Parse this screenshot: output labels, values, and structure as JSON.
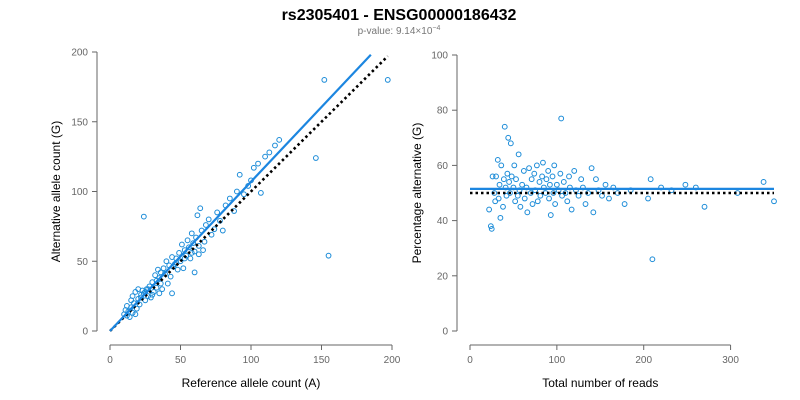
{
  "title": "rs2305401 - ENSG00000186432",
  "subtitle": {
    "prefix": "p-value: 9.14×10",
    "exponent": "−4"
  },
  "colors": {
    "points": "#1c8cd8",
    "fit_line": "#1c86e0",
    "reference_line": "#000000",
    "axis": "#666666"
  },
  "chart_data": [
    {
      "type": "scatter",
      "xlabel": "Reference allele count (A)",
      "ylabel": "Alternative allele count (G)",
      "xlim": [
        0,
        200
      ],
      "ylim": [
        0,
        200
      ],
      "xticks": [
        0,
        50,
        100,
        150,
        200
      ],
      "yticks": [
        0,
        50,
        100,
        150,
        200
      ],
      "grid": false,
      "points": [
        [
          10,
          12
        ],
        [
          11,
          15
        ],
        [
          12,
          11
        ],
        [
          12,
          18
        ],
        [
          13,
          14
        ],
        [
          14,
          10
        ],
        [
          15,
          22
        ],
        [
          15,
          17
        ],
        [
          16,
          25
        ],
        [
          16,
          13
        ],
        [
          17,
          20
        ],
        [
          18,
          12
        ],
        [
          18,
          28
        ],
        [
          19,
          16
        ],
        [
          20,
          23
        ],
        [
          20,
          30
        ],
        [
          21,
          19
        ],
        [
          22,
          24
        ],
        [
          22,
          26
        ],
        [
          23,
          29
        ],
        [
          24,
          27
        ],
        [
          24,
          82
        ],
        [
          25,
          22
        ],
        [
          26,
          30
        ],
        [
          27,
          25
        ],
        [
          28,
          32
        ],
        [
          29,
          24
        ],
        [
          30,
          35
        ],
        [
          31,
          28
        ],
        [
          32,
          40
        ],
        [
          33,
          36
        ],
        [
          34,
          44
        ],
        [
          35,
          38
        ],
        [
          36,
          42
        ],
        [
          37,
          30
        ],
        [
          38,
          45
        ],
        [
          39,
          41
        ],
        [
          40,
          50
        ],
        [
          41,
          34
        ],
        [
          42,
          47
        ],
        [
          43,
          39
        ],
        [
          44,
          53
        ],
        [
          45,
          46
        ],
        [
          46,
          48
        ],
        [
          47,
          52
        ],
        [
          48,
          44
        ],
        [
          49,
          56
        ],
        [
          50,
          50
        ],
        [
          51,
          62
        ],
        [
          52,
          45
        ],
        [
          53,
          58
        ],
        [
          54,
          54
        ],
        [
          55,
          65
        ],
        [
          56,
          60
        ],
        [
          57,
          52
        ],
        [
          58,
          70
        ],
        [
          59,
          63
        ],
        [
          60,
          57
        ],
        [
          61,
          67
        ],
        [
          62,
          83
        ],
        [
          63,
          61
        ],
        [
          64,
          88
        ],
        [
          65,
          72
        ],
        [
          66,
          58
        ],
        [
          68,
          76
        ],
        [
          70,
          80
        ],
        [
          72,
          69
        ],
        [
          74,
          73
        ],
        [
          76,
          85
        ],
        [
          78,
          79
        ],
        [
          80,
          72
        ],
        [
          82,
          90
        ],
        [
          85,
          95
        ],
        [
          88,
          86
        ],
        [
          90,
          100
        ],
        [
          92,
          112
        ],
        [
          95,
          98
        ],
        [
          98,
          104
        ],
        [
          100,
          108
        ],
        [
          102,
          117
        ],
        [
          105,
          120
        ],
        [
          107,
          99
        ],
        [
          110,
          125
        ],
        [
          113,
          128
        ],
        [
          117,
          133
        ],
        [
          120,
          137
        ],
        [
          146,
          124
        ],
        [
          152,
          180
        ],
        [
          155,
          54
        ],
        [
          197,
          180
        ],
        [
          25,
          28
        ],
        [
          27,
          30
        ],
        [
          30,
          26
        ],
        [
          33,
          31
        ],
        [
          36,
          34
        ],
        [
          47,
          49
        ],
        [
          53,
          52
        ],
        [
          58,
          56
        ],
        [
          67,
          64
        ],
        [
          35,
          27
        ],
        [
          44,
          27
        ],
        [
          63,
          55
        ],
        [
          60,
          42
        ]
      ],
      "fit_line": [
        [
          0,
          0
        ],
        [
          185,
          198
        ]
      ],
      "reference_line": [
        [
          0,
          0
        ],
        [
          197,
          197
        ]
      ]
    },
    {
      "type": "scatter",
      "xlabel": "Total number of reads",
      "ylabel": "Percentage alternative (G)",
      "xlim": [
        0,
        350
      ],
      "ylim": [
        0,
        100
      ],
      "xticks": [
        0,
        100,
        200,
        300
      ],
      "yticks": [
        0,
        20,
        40,
        60,
        80,
        100
      ],
      "grid": false,
      "points": [
        [
          22,
          44
        ],
        [
          24,
          38
        ],
        [
          25,
          37
        ],
        [
          26,
          56
        ],
        [
          28,
          50
        ],
        [
          29,
          47
        ],
        [
          30,
          56
        ],
        [
          32,
          62
        ],
        [
          33,
          48
        ],
        [
          34,
          53
        ],
        [
          35,
          41
        ],
        [
          36,
          60
        ],
        [
          38,
          45
        ],
        [
          39,
          55
        ],
        [
          40,
          74
        ],
        [
          41,
          52
        ],
        [
          42,
          49
        ],
        [
          43,
          57
        ],
        [
          44,
          70
        ],
        [
          45,
          54
        ],
        [
          46,
          50
        ],
        [
          47,
          68
        ],
        [
          48,
          56
        ],
        [
          50,
          52
        ],
        [
          51,
          60
        ],
        [
          52,
          47
        ],
        [
          53,
          55
        ],
        [
          55,
          49
        ],
        [
          56,
          64
        ],
        [
          57,
          51
        ],
        [
          58,
          45
        ],
        [
          60,
          53
        ],
        [
          62,
          58
        ],
        [
          63,
          48
        ],
        [
          65,
          52
        ],
        [
          66,
          43
        ],
        [
          68,
          59
        ],
        [
          70,
          50
        ],
        [
          71,
          55
        ],
        [
          72,
          46
        ],
        [
          74,
          57
        ],
        [
          75,
          51
        ],
        [
          77,
          60
        ],
        [
          78,
          47
        ],
        [
          80,
          54
        ],
        [
          81,
          49
        ],
        [
          83,
          56
        ],
        [
          84,
          61
        ],
        [
          85,
          52
        ],
        [
          87,
          50
        ],
        [
          88,
          55
        ],
        [
          90,
          58
        ],
        [
          91,
          48
        ],
        [
          92,
          53
        ],
        [
          93,
          42
        ],
        [
          95,
          56
        ],
        [
          96,
          50
        ],
        [
          97,
          60
        ],
        [
          98,
          46
        ],
        [
          100,
          53
        ],
        [
          102,
          51
        ],
        [
          104,
          57
        ],
        [
          105,
          77
        ],
        [
          106,
          49
        ],
        [
          108,
          54
        ],
        [
          110,
          50
        ],
        [
          112,
          47
        ],
        [
          114,
          56
        ],
        [
          115,
          52
        ],
        [
          117,
          44
        ],
        [
          120,
          58
        ],
        [
          122,
          51
        ],
        [
          125,
          49
        ],
        [
          128,
          55
        ],
        [
          130,
          52
        ],
        [
          133,
          46
        ],
        [
          136,
          50
        ],
        [
          140,
          59
        ],
        [
          142,
          43
        ],
        [
          145,
          55
        ],
        [
          148,
          51
        ],
        [
          152,
          49
        ],
        [
          156,
          53
        ],
        [
          160,
          48
        ],
        [
          165,
          52
        ],
        [
          170,
          50
        ],
        [
          178,
          46
        ],
        [
          185,
          51
        ],
        [
          205,
          48
        ],
        [
          208,
          55
        ],
        [
          210,
          26
        ],
        [
          220,
          52
        ],
        [
          232,
          51
        ],
        [
          248,
          53
        ],
        [
          260,
          52
        ],
        [
          270,
          45
        ],
        [
          308,
          50
        ],
        [
          338,
          54
        ],
        [
          350,
          47
        ]
      ],
      "fit_line": [
        [
          0,
          51.5
        ],
        [
          350,
          51.5
        ]
      ],
      "reference_line": [
        [
          0,
          50
        ],
        [
          350,
          50
        ]
      ]
    }
  ]
}
